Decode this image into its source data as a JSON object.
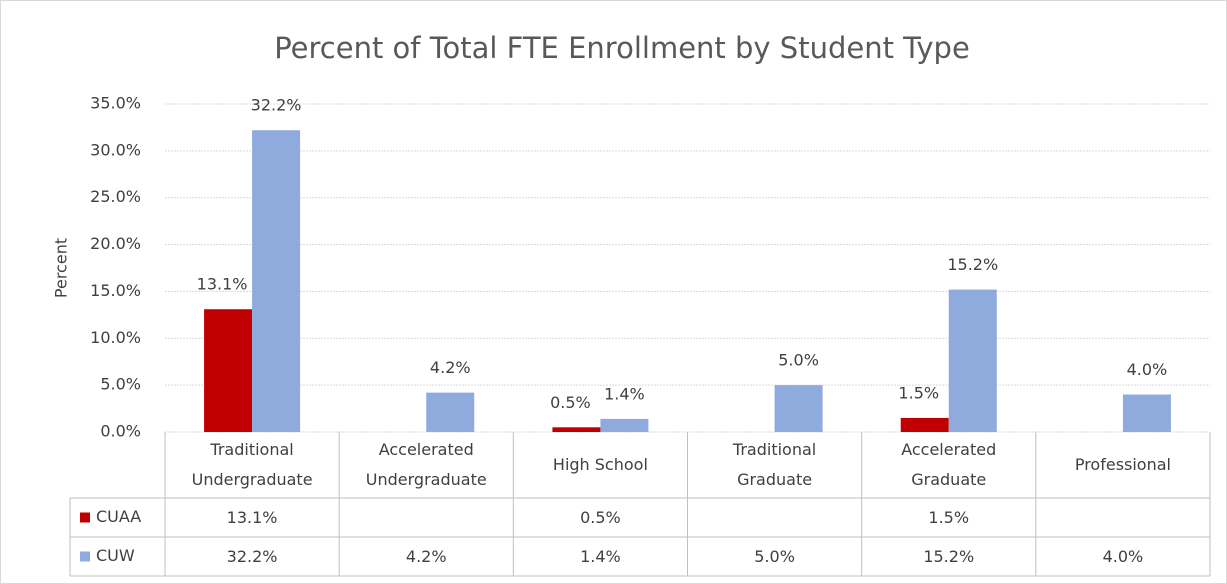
{
  "chart_data": {
    "type": "bar",
    "title": "Percent of Total FTE Enrollment by Student Type",
    "y_label": "Percent",
    "categories": [
      "Traditional Undergraduate",
      "Accelerated Undergraduate",
      "High School",
      "Traditional Graduate",
      "Accelerated Graduate",
      "Professional"
    ],
    "series": [
      {
        "name": "CUAA",
        "color": "#c00000",
        "values": [
          13.1,
          null,
          0.5,
          null,
          1.5,
          null
        ],
        "value_labels": [
          "13.1%",
          null,
          "0.5%",
          null,
          "1.5%",
          null
        ]
      },
      {
        "name": "CUW",
        "color": "#8faadc",
        "values": [
          32.2,
          4.2,
          1.4,
          5.0,
          15.2,
          4.0
        ],
        "value_labels": [
          "32.2%",
          "4.2%",
          "1.4%",
          "5.0%",
          "15.2%",
          "4.0%"
        ]
      }
    ],
    "ylim": [
      0,
      35
    ],
    "yticks": [
      {
        "value": 0,
        "label": "0.0%"
      },
      {
        "value": 5,
        "label": "5.0%"
      },
      {
        "value": 10,
        "label": "10.0%"
      },
      {
        "value": 15,
        "label": "15.0%"
      },
      {
        "value": 20,
        "label": "20.0%"
      },
      {
        "value": 25,
        "label": "25.0%"
      },
      {
        "value": 30,
        "label": "30.0%"
      },
      {
        "value": 35,
        "label": "35.0%"
      }
    ],
    "grid": true
  }
}
